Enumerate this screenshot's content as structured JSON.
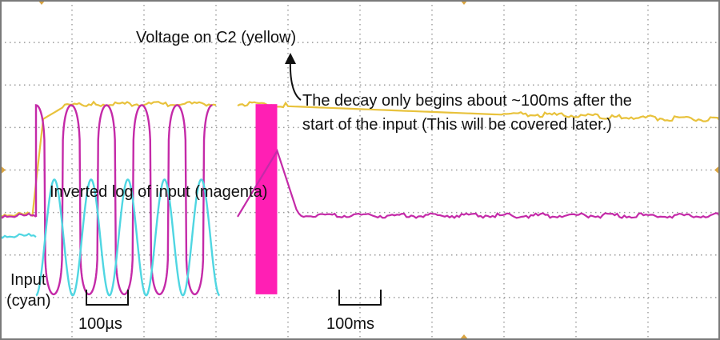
{
  "chart_data": {
    "type": "line",
    "grid": true,
    "grid_divisions": {
      "x": 10,
      "y": 8
    },
    "background": "#ffffff",
    "frame_color": "#7a7a7a",
    "grid_color": "#9a9a9a",
    "trigger_marker_color": "#d9a441",
    "labels": {
      "yellow": "Voltage on C2 (yellow)",
      "magenta": "Inverted log of input (magenta)",
      "cyan_line1": "Input",
      "cyan_line2": "(cyan)",
      "annotation_line1": "The decay only begins about ~100ms after the",
      "annotation_line2": "start of the input (This will be covered later.)",
      "scale_left": "100µs",
      "scale_right": "100ms"
    },
    "series": [
      {
        "key": "yellow",
        "color": "#e8c23c",
        "segments": [
          {
            "x": [
              0,
              0.45,
              0.5,
              0.6,
              0.9,
              1.3,
              3.0
            ],
            "y": [
              -2.15,
              -2.15,
              -0.6,
              2.4,
              3.0,
              3.05,
              3.05
            ]
          },
          {
            "x": [
              3.3,
              4.0,
              5.5,
              7.0,
              8.5,
              10.0
            ],
            "y": [
              3.05,
              3.0,
              2.8,
              2.6,
              2.45,
              2.3
            ]
          }
        ]
      },
      {
        "key": "magenta",
        "color": "#c42aa8",
        "style": "burst",
        "burst": {
          "x_start": 0.5,
          "x_end": 2.95,
          "cycles": 5,
          "high": 3.05,
          "low": -5.85,
          "baseline": -2.2
        },
        "segments": [
          {
            "x": [
              0,
              0.5
            ],
            "y": [
              -2.2,
              -2.2
            ]
          },
          {
            "x": [
              3.3,
              3.85,
              4.15,
              10.0
            ],
            "y": [
              -2.2,
              0.9,
              -2.2,
              -2.2
            ]
          }
        ],
        "band": {
          "x_start": 3.55,
          "x_end": 3.85,
          "y_top": 3.1,
          "y_bottom": -5.85,
          "color": "#ff1fb4"
        }
      },
      {
        "key": "cyan",
        "color": "#4fd6e2",
        "style": "burst",
        "burst": {
          "x_start": 0.5,
          "x_end": 3.05,
          "cycles": 5,
          "high": -0.45,
          "low": -5.9
        },
        "segments": [
          {
            "x": [
              0,
              0.5
            ],
            "y": [
              -3.15,
              -3.15
            ]
          }
        ]
      }
    ],
    "ylim": [
      -8,
      8
    ],
    "xlim": [
      0,
      10
    ]
  }
}
